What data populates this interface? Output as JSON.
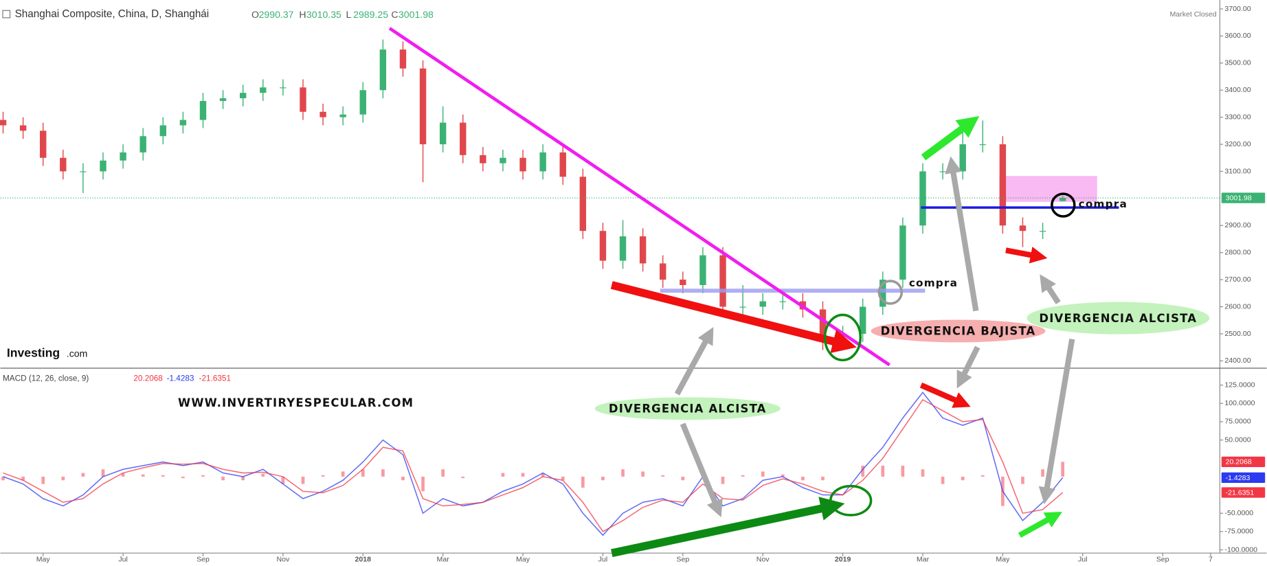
{
  "header": {
    "title": "Shanghai Composite, China, D, Shanghái",
    "status": "Market Closed"
  },
  "chart_data": [
    {
      "type": "candlestick",
      "ohlc_labels": [
        "O",
        "H",
        "L",
        "C"
      ],
      "x": [
        -1,
        -0.5,
        0,
        0.5,
        1,
        1.5,
        2,
        2.5,
        3,
        3.5,
        4,
        4.5,
        5,
        5.5,
        6,
        6.5,
        7,
        7.5,
        8,
        8.5,
        9,
        9.5,
        10,
        10.5,
        11,
        11.5,
        12,
        12.5,
        13,
        13.5,
        14,
        14.5,
        15,
        15.5,
        16,
        16.5,
        17,
        17.5,
        18,
        18.5,
        19,
        19.5,
        20,
        20.5,
        21,
        21.5,
        22,
        22.5,
        23,
        23.5,
        24,
        24.5,
        25,
        25.5
      ],
      "open": [
        3290,
        3270,
        3250,
        3150,
        3100,
        3100,
        3140,
        3170,
        3230,
        3270,
        3290,
        3360,
        3370,
        3390,
        3410,
        3410,
        3320,
        3300,
        3310,
        3400,
        3550,
        3480,
        3200,
        3280,
        3160,
        3130,
        3150,
        3100,
        3170,
        3080,
        2880,
        2770,
        2860,
        2760,
        2700,
        2680,
        2790,
        2600,
        2600,
        2620,
        2620,
        2590,
        2490,
        2500,
        2600,
        2700,
        2900,
        3100,
        3100,
        3200,
        3200,
        2900,
        2880,
        2990.37
      ],
      "high": [
        3320,
        3300,
        3280,
        3180,
        3130,
        3170,
        3200,
        3260,
        3300,
        3320,
        3390,
        3400,
        3420,
        3440,
        3440,
        3440,
        3350,
        3340,
        3430,
        3587,
        3580,
        3510,
        3340,
        3310,
        3190,
        3180,
        3180,
        3200,
        3200,
        3110,
        2910,
        2920,
        2890,
        2790,
        2730,
        2820,
        2820,
        2680,
        2650,
        2650,
        2650,
        2620,
        2530,
        2630,
        2730,
        2930,
        3130,
        3130,
        3290,
        3288,
        3230,
        2930,
        2910,
        3010.35
      ],
      "low": [
        3240,
        3220,
        3120,
        3070,
        3020,
        3070,
        3110,
        3140,
        3200,
        3240,
        3260,
        3330,
        3340,
        3360,
        3380,
        3290,
        3270,
        3270,
        3280,
        3370,
        3450,
        3060,
        3170,
        3130,
        3100,
        3100,
        3070,
        3070,
        3050,
        2850,
        2740,
        2740,
        2730,
        2670,
        2650,
        2650,
        2570,
        2570,
        2570,
        2590,
        2560,
        2440,
        2460,
        2470,
        2570,
        2670,
        2870,
        3070,
        3070,
        3170,
        2870,
        2820,
        2850,
        2989.25
      ],
      "close": [
        3270,
        3250,
        3150,
        3100,
        3100,
        3140,
        3170,
        3230,
        3270,
        3290,
        3360,
        3370,
        3390,
        3410,
        3410,
        3320,
        3300,
        3310,
        3400,
        3550,
        3480,
        3200,
        3280,
        3160,
        3130,
        3150,
        3100,
        3170,
        3080,
        2880,
        2770,
        2860,
        2760,
        2700,
        2680,
        2790,
        2600,
        2600,
        2620,
        2620,
        2590,
        2490,
        2500,
        2600,
        2700,
        2900,
        3100,
        3100,
        3200,
        3200,
        2900,
        2880,
        2880,
        3001.98
      ],
      "up_color": "#3bb273",
      "down_color": "#e0474c",
      "price_line_color": "#3bb273",
      "xlim": [
        -1.07,
        29.43
      ],
      "ylim": [
        2376,
        3724
      ],
      "yticks": [
        {
          "value": 3700,
          "label": "3700.00"
        },
        {
          "value": 3600,
          "label": "3600.00"
        },
        {
          "value": 3500,
          "label": "3500.00"
        },
        {
          "value": 3400,
          "label": "3400.00"
        },
        {
          "value": 3300,
          "label": "3300.00"
        },
        {
          "value": 3200,
          "label": "3200.00"
        },
        {
          "value": 3100,
          "label": "3100.00"
        },
        {
          "value": 2900,
          "label": "2900.00"
        },
        {
          "value": 2800,
          "label": "2800.00"
        },
        {
          "value": 2700,
          "label": "2700.00"
        },
        {
          "value": 2600,
          "label": "2600.00"
        },
        {
          "value": 2500,
          "label": "2500.00"
        },
        {
          "value": 2400,
          "label": "2400.00"
        }
      ]
    },
    {
      "type": "macd",
      "title": "MACD (12, 26, close, 9)",
      "x": [
        -1,
        -0.5,
        0,
        0.5,
        1,
        1.5,
        2,
        2.5,
        3,
        3.5,
        4,
        4.5,
        5,
        5.5,
        6,
        6.5,
        7,
        7.5,
        8,
        8.5,
        9,
        9.5,
        10,
        10.5,
        11,
        11.5,
        12,
        12.5,
        13,
        13.5,
        14,
        14.5,
        15,
        15.5,
        16,
        16.5,
        17,
        17.5,
        18,
        18.5,
        19,
        19.5,
        20,
        20.5,
        21,
        21.5,
        22,
        22.5,
        23,
        23.5,
        24,
        24.5,
        25,
        25.5
      ],
      "series": [
        {
          "style": "bar",
          "color": "#f23645",
          "values": [
            -5,
            -5,
            -10,
            -5,
            5,
            10,
            5,
            3,
            2,
            -2,
            2,
            -5,
            -5,
            4,
            -10,
            -10,
            2,
            7,
            10,
            10,
            -5,
            -20,
            10,
            -2,
            0,
            5,
            5,
            5,
            -5,
            -15,
            -5,
            10,
            7,
            2,
            -5,
            10,
            -10,
            2,
            7,
            3,
            -5,
            -5,
            0,
            15,
            15,
            15,
            10,
            -10,
            -5,
            2,
            -40,
            -10,
            10,
            20.2068
          ]
        },
        {
          "style": "line",
          "color": "#2b3bf0",
          "values": [
            0,
            -10,
            -30,
            -40,
            -25,
            0,
            10,
            15,
            20,
            15,
            20,
            5,
            0,
            10,
            -10,
            -30,
            -20,
            -5,
            20,
            50,
            30,
            -50,
            -30,
            -40,
            -35,
            -20,
            -10,
            5,
            -10,
            -50,
            -80,
            -50,
            -35,
            -30,
            -40,
            0,
            -40,
            -30,
            -5,
            0,
            -15,
            -25,
            -25,
            10,
            40,
            80,
            115,
            80,
            70,
            80,
            -20,
            -60,
            -35,
            -1.4283
          ]
        },
        {
          "style": "line",
          "color": "#f23645",
          "values": [
            5,
            -5,
            -20,
            -35,
            -30,
            -10,
            5,
            12,
            18,
            17,
            18,
            10,
            5,
            6,
            0,
            -20,
            -22,
            -12,
            10,
            40,
            35,
            -30,
            -40,
            -38,
            -35,
            -25,
            -15,
            0,
            -5,
            -35,
            -75,
            -60,
            -42,
            -32,
            -35,
            -10,
            -30,
            -32,
            -12,
            -3,
            -10,
            -20,
            -25,
            -5,
            25,
            65,
            105,
            90,
            75,
            78,
            20,
            -50,
            -45,
            -21.6351
          ]
        }
      ],
      "xlim": [
        -1.07,
        29.43
      ],
      "ylim": [
        -104.4,
        147
      ],
      "yticks": [
        {
          "value": 125,
          "label": "125.0000"
        },
        {
          "value": 100,
          "label": "100.0000"
        },
        {
          "value": 75,
          "label": "75.0000"
        },
        {
          "value": 50,
          "label": "50.0000"
        },
        {
          "value": -50,
          "label": "-50.0000"
        },
        {
          "value": -75,
          "label": "-75.0000"
        },
        {
          "value": -100,
          "label": "-100.0000"
        }
      ],
      "xticks": [
        {
          "value": 0,
          "label": "May"
        },
        {
          "value": 2,
          "label": "Jul"
        },
        {
          "value": 4,
          "label": "Sep"
        },
        {
          "value": 6,
          "label": "Nov"
        },
        {
          "value": 8,
          "label": "2018"
        },
        {
          "value": 10,
          "label": "Mar"
        },
        {
          "value": 12,
          "label": "May"
        },
        {
          "value": 14,
          "label": "Jul"
        },
        {
          "value": 16,
          "label": "Sep"
        },
        {
          "value": 18,
          "label": "Nov"
        },
        {
          "value": 20,
          "label": "2019"
        },
        {
          "value": 22,
          "label": "Mar"
        },
        {
          "value": 24,
          "label": "May"
        },
        {
          "value": 26,
          "label": "Jul"
        },
        {
          "value": 28,
          "label": "Sep"
        },
        {
          "value": 29.2,
          "label": "7"
        }
      ]
    }
  ],
  "annotations": {
    "watermark": "WWW.INVERTIRYESPECULAR.COM",
    "logo": "Investing",
    "logo_suffix": ".com",
    "buy_labels": [
      "compra",
      "compra"
    ],
    "divergences": [
      "DIVERGENCIA ALCISTA",
      "DIVERGENCIA BAJISTA",
      "DIVERGENCIA ALCISTA"
    ]
  }
}
